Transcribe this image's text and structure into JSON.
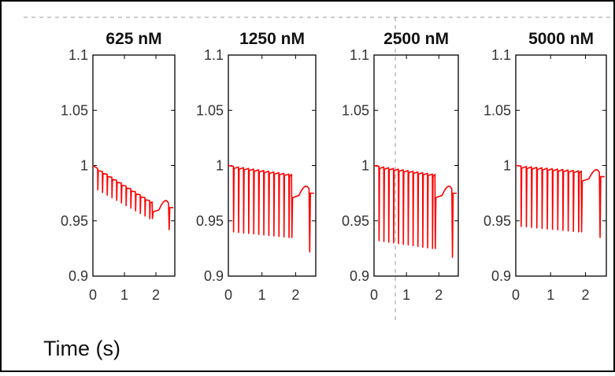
{
  "figure": {
    "xlabel": "Time (s)",
    "colors": {
      "trace": "#ff0000",
      "axis": "#000000",
      "tick_text": "#333333",
      "guide": "#999999"
    }
  },
  "chart_data": [
    {
      "type": "line",
      "title": "625 nM",
      "xlabel": "",
      "ylabel": "",
      "xlim": [
        0,
        2.6
      ],
      "ylim": [
        0.9,
        1.1
      ],
      "xticks": [
        "0",
        "1",
        "2"
      ],
      "yticks": [
        "0.9",
        "0.95",
        "1",
        "1.05",
        "1.1"
      ],
      "grid": false,
      "series": [
        {
          "pulses": [
            0.15,
            0.3,
            0.45,
            0.6,
            0.75,
            0.9,
            1.05,
            1.2,
            1.35,
            1.5,
            1.65,
            1.8
          ],
          "baseline": [
            1.0,
            0.967
          ],
          "tail_end": 0.962,
          "dip_start": 0.978,
          "dip_end": 0.952,
          "last_dip": 0.942
        }
      ]
    },
    {
      "type": "line",
      "title": "1250 nM",
      "xlabel": "",
      "ylabel": "",
      "xlim": [
        0,
        2.6
      ],
      "ylim": [
        0.9,
        1.1
      ],
      "xticks": [
        "0",
        "1",
        "2"
      ],
      "yticks": [
        "0.9",
        "0.95",
        "1",
        "1.05",
        "1.1"
      ],
      "grid": false,
      "series": [
        {
          "pulses": [
            0.15,
            0.3,
            0.45,
            0.6,
            0.75,
            0.9,
            1.05,
            1.2,
            1.35,
            1.5,
            1.65,
            1.8
          ],
          "baseline": [
            1.0,
            0.992
          ],
          "tail_end": 0.975,
          "dip_start": 0.94,
          "dip_end": 0.935,
          "last_dip": 0.922
        }
      ]
    },
    {
      "type": "line",
      "title": "2500 nM",
      "xlabel": "",
      "ylabel": "",
      "xlim": [
        0,
        2.6
      ],
      "ylim": [
        0.9,
        1.1
      ],
      "xticks": [
        "0",
        "1",
        "2"
      ],
      "yticks": [
        "0.9",
        "0.95",
        "1",
        "1.05",
        "1.1"
      ],
      "grid": false,
      "series": [
        {
          "pulses": [
            0.15,
            0.3,
            0.45,
            0.6,
            0.75,
            0.9,
            1.05,
            1.2,
            1.35,
            1.5,
            1.65,
            1.8
          ],
          "baseline": [
            1.0,
            0.992
          ],
          "tail_end": 0.975,
          "dip_start": 0.932,
          "dip_end": 0.925,
          "last_dip": 0.917
        }
      ]
    },
    {
      "type": "line",
      "title": "5000 nM",
      "xlabel": "",
      "ylabel": "",
      "xlim": [
        0,
        2.6
      ],
      "ylim": [
        0.9,
        1.1
      ],
      "xticks": [
        "0",
        "1",
        "2"
      ],
      "yticks": [
        "0.9",
        "0.95",
        "1",
        "1.05",
        "1.1"
      ],
      "grid": false,
      "series": [
        {
          "pulses": [
            0.15,
            0.3,
            0.45,
            0.6,
            0.75,
            0.9,
            1.05,
            1.2,
            1.35,
            1.5,
            1.65,
            1.8
          ],
          "baseline": [
            1.0,
            0.995
          ],
          "tail_end": 0.99,
          "dip_start": 0.945,
          "dip_end": 0.94,
          "last_dip": 0.935
        }
      ]
    }
  ]
}
